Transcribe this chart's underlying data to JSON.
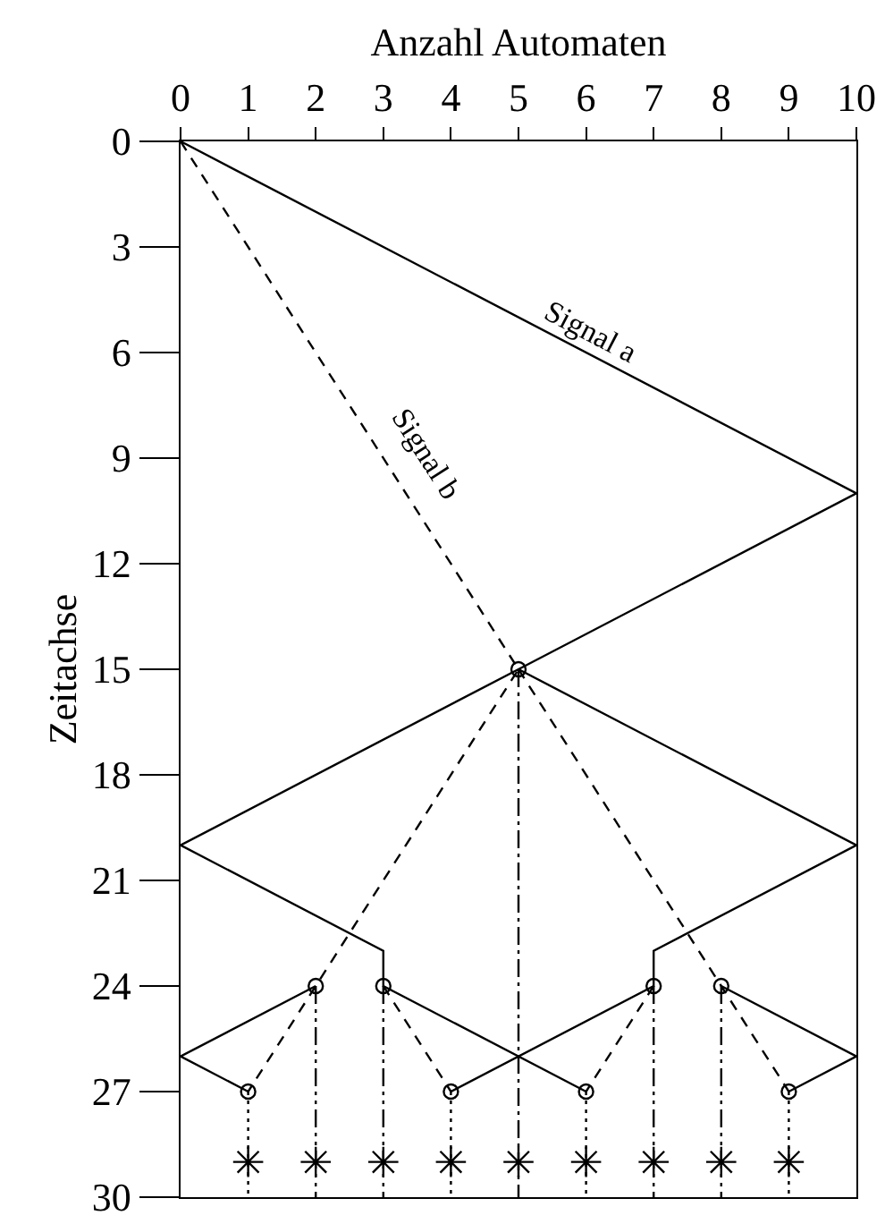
{
  "chart_data": {
    "type": "line",
    "xlabel": "Anzahl Automaten",
    "ylabel": "Zeitachse",
    "xlim": [
      0,
      10
    ],
    "xticks": [
      0,
      1,
      2,
      3,
      4,
      5,
      6,
      7,
      8,
      9,
      10
    ],
    "ylim": [
      30,
      0
    ],
    "yticks": [
      0,
      3,
      6,
      9,
      12,
      15,
      18,
      21,
      24,
      27,
      30
    ],
    "grid": false,
    "legend": false,
    "series": [
      {
        "name": "Signal a",
        "line_style": "solid",
        "color": "#000000",
        "x": [
          0,
          10,
          5,
          0,
          3,
          3,
          6
        ],
        "values": [
          0,
          10,
          15,
          20,
          23,
          24,
          27
        ]
      },
      {
        "type": "line",
        "line_style": "solid",
        "color": "#000000",
        "x": [
          5,
          10,
          7,
          7,
          4
        ],
        "values": [
          15,
          20,
          23,
          24,
          27
        ]
      },
      {
        "type": "line",
        "line_style": "solid",
        "color": "#000000",
        "x": [
          2,
          0,
          1
        ],
        "values": [
          24,
          26,
          27
        ]
      },
      {
        "type": "line",
        "line_style": "solid",
        "color": "#000000",
        "x": [
          8,
          10,
          9
        ],
        "values": [
          24,
          26,
          27
        ]
      },
      {
        "name": "Signal b",
        "line_style": "dashed",
        "color": "#000000",
        "x": [
          0,
          5,
          2,
          1
        ],
        "values": [
          0,
          15,
          24,
          27
        ]
      },
      {
        "type": "line",
        "line_style": "dashed",
        "color": "#000000",
        "x": [
          5,
          8,
          9
        ],
        "values": [
          15,
          24,
          27
        ]
      },
      {
        "type": "line",
        "line_style": "dashed",
        "color": "#000000",
        "x": [
          3,
          4
        ],
        "values": [
          24,
          27
        ]
      },
      {
        "type": "line",
        "line_style": "dashed",
        "color": "#000000",
        "x": [
          7,
          6
        ],
        "values": [
          24,
          27
        ]
      },
      {
        "type": "line",
        "line_style": "dashdot",
        "color": "#000000",
        "x": [
          5,
          5
        ],
        "values": [
          15,
          30
        ]
      },
      {
        "type": "line",
        "line_style": "dashdotdot",
        "color": "#000000",
        "x": [
          2,
          2
        ],
        "values": [
          24,
          30
        ]
      },
      {
        "type": "line",
        "line_style": "dashdotdot",
        "color": "#000000",
        "x": [
          3,
          3
        ],
        "values": [
          24,
          30
        ]
      },
      {
        "type": "line",
        "line_style": "dashdotdot",
        "color": "#000000",
        "x": [
          7,
          7
        ],
        "values": [
          24,
          30
        ]
      },
      {
        "type": "line",
        "line_style": "dashdotdot",
        "color": "#000000",
        "x": [
          8,
          8
        ],
        "values": [
          24,
          30
        ]
      },
      {
        "type": "line",
        "line_style": "dotted",
        "color": "#000000",
        "x": [
          1,
          1
        ],
        "values": [
          27,
          30
        ]
      },
      {
        "type": "line",
        "line_style": "dotted",
        "color": "#000000",
        "x": [
          4,
          4
        ],
        "values": [
          27,
          30
        ]
      },
      {
        "type": "line",
        "line_style": "dotted",
        "color": "#000000",
        "x": [
          6,
          6
        ],
        "values": [
          27,
          30
        ]
      },
      {
        "type": "line",
        "line_style": "dotted",
        "color": "#000000",
        "x": [
          9,
          9
        ],
        "values": [
          27,
          30
        ]
      },
      {
        "type": "scatter",
        "marker": "circle",
        "color": "#000000",
        "x": [
          5,
          2,
          3,
          7,
          8,
          1,
          4,
          6,
          9
        ],
        "values": [
          15,
          24,
          24,
          24,
          24,
          27,
          27,
          27,
          27
        ]
      },
      {
        "type": "scatter",
        "marker": "cross",
        "color": "#000000",
        "x": [
          1,
          2,
          3,
          4,
          5,
          6,
          7,
          8,
          9
        ],
        "values": [
          29,
          29,
          29,
          29,
          29,
          29,
          29,
          29,
          29
        ]
      }
    ]
  }
}
